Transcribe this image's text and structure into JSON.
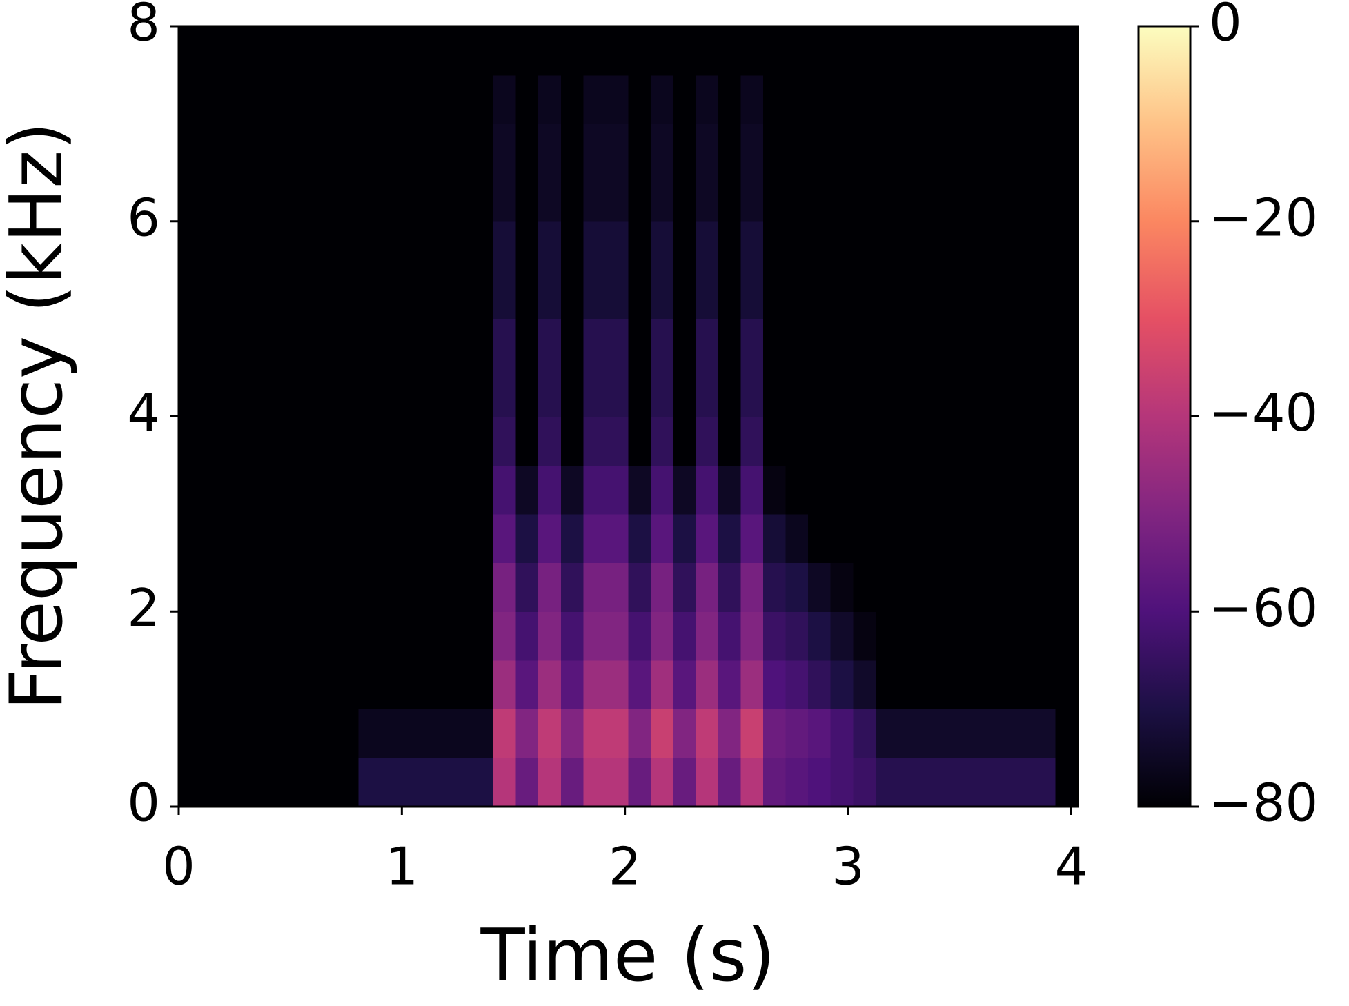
{
  "chart_data": {
    "type": "heatmap",
    "x_label": "Time (s)",
    "y_label": "Frequency (kHz)",
    "xlim": [
      0,
      4.03
    ],
    "ylim": [
      0,
      8
    ],
    "xticks": [
      0,
      1,
      2,
      3,
      4
    ],
    "yticks": [
      0,
      2,
      4,
      6,
      8
    ],
    "colormap": "magma",
    "clim": [
      -80,
      0
    ],
    "cticks": [
      {
        "value": 0,
        "label": "0"
      },
      {
        "value": -20,
        "label": "−20"
      },
      {
        "value": -40,
        "label": "−40"
      },
      {
        "value": -60,
        "label": "−60"
      },
      {
        "value": -80,
        "label": "−80"
      }
    ],
    "z": [
      [
        -80,
        -80,
        -80,
        -80,
        -80,
        -80,
        -80,
        -80,
        -70,
        -70,
        -70,
        -70,
        -70,
        -70,
        -40,
        -55,
        -40,
        -55,
        -40,
        -40,
        -55,
        -40,
        -55,
        -40,
        -55,
        -40,
        -56,
        -58,
        -60,
        -62,
        -64,
        -68,
        -68,
        -68,
        -68,
        -68,
        -68,
        -68,
        -68,
        -80
      ],
      [
        -80,
        -80,
        -80,
        -80,
        -80,
        -80,
        -80,
        -80,
        -76,
        -76,
        -76,
        -76,
        -76,
        -76,
        -38,
        -50,
        -38,
        -50,
        -38,
        -38,
        -50,
        -36,
        -50,
        -38,
        -50,
        -36,
        -54,
        -56,
        -58,
        -62,
        -66,
        -74,
        -74,
        -74,
        -74,
        -74,
        -74,
        -74,
        -74,
        -80
      ],
      [
        -80,
        -80,
        -80,
        -80,
        -80,
        -80,
        -80,
        -80,
        -80,
        -80,
        -80,
        -80,
        -80,
        -80,
        -45,
        -58,
        -45,
        -58,
        -45,
        -45,
        -58,
        -44,
        -58,
        -45,
        -58,
        -45,
        -60,
        -62,
        -66,
        -70,
        -74,
        -80,
        -80,
        -80,
        -80,
        -80,
        -80,
        -80,
        -80,
        -80
      ],
      [
        -80,
        -80,
        -80,
        -80,
        -80,
        -80,
        -80,
        -80,
        -80,
        -80,
        -80,
        -80,
        -80,
        -80,
        -50,
        -62,
        -50,
        -62,
        -50,
        -50,
        -62,
        -50,
        -62,
        -50,
        -62,
        -50,
        -64,
        -66,
        -70,
        -74,
        -78,
        -80,
        -80,
        -80,
        -80,
        -80,
        -80,
        -80,
        -80,
        -80
      ],
      [
        -80,
        -80,
        -80,
        -80,
        -80,
        -80,
        -80,
        -80,
        -80,
        -80,
        -80,
        -80,
        -80,
        -80,
        -52,
        -66,
        -52,
        -66,
        -52,
        -52,
        -66,
        -52,
        -66,
        -52,
        -66,
        -52,
        -68,
        -70,
        -75,
        -78,
        -80,
        -80,
        -80,
        -80,
        -80,
        -80,
        -80,
        -80,
        -80,
        -80
      ],
      [
        -80,
        -80,
        -80,
        -80,
        -80,
        -80,
        -80,
        -80,
        -80,
        -80,
        -80,
        -80,
        -80,
        -80,
        -58,
        -70,
        -58,
        -70,
        -58,
        -58,
        -70,
        -58,
        -70,
        -58,
        -70,
        -58,
        -72,
        -76,
        -80,
        -80,
        -80,
        -80,
        -80,
        -80,
        -80,
        -80,
        -80,
        -80,
        -80,
        -80
      ],
      [
        -80,
        -80,
        -80,
        -80,
        -80,
        -80,
        -80,
        -80,
        -80,
        -80,
        -80,
        -80,
        -80,
        -80,
        -62,
        -75,
        -62,
        -75,
        -62,
        -62,
        -75,
        -62,
        -75,
        -62,
        -75,
        -62,
        -78,
        -80,
        -80,
        -80,
        -80,
        -80,
        -80,
        -80,
        -80,
        -80,
        -80,
        -80,
        -80,
        -80
      ],
      [
        -80,
        -80,
        -80,
        -80,
        -80,
        -80,
        -80,
        -80,
        -80,
        -80,
        -80,
        -80,
        -80,
        -80,
        -66,
        -80,
        -66,
        -80,
        -66,
        -66,
        -80,
        -66,
        -80,
        -66,
        -80,
        -66,
        -80,
        -80,
        -80,
        -80,
        -80,
        -80,
        -80,
        -80,
        -80,
        -80,
        -80,
        -80,
        -80,
        -80
      ],
      [
        -80,
        -80,
        -80,
        -80,
        -80,
        -80,
        -80,
        -80,
        -80,
        -80,
        -80,
        -80,
        -80,
        -80,
        -68,
        -80,
        -68,
        -80,
        -68,
        -68,
        -80,
        -68,
        -80,
        -68,
        -80,
        -68,
        -80,
        -80,
        -80,
        -80,
        -80,
        -80,
        -80,
        -80,
        -80,
        -80,
        -80,
        -80,
        -80,
        -80
      ],
      [
        -80,
        -80,
        -80,
        -80,
        -80,
        -80,
        -80,
        -80,
        -80,
        -80,
        -80,
        -80,
        -80,
        -80,
        -68,
        -80,
        -68,
        -80,
        -68,
        -68,
        -80,
        -68,
        -80,
        -68,
        -80,
        -68,
        -80,
        -80,
        -80,
        -80,
        -80,
        -80,
        -80,
        -80,
        -80,
        -80,
        -80,
        -80,
        -80,
        -80
      ],
      [
        -80,
        -80,
        -80,
        -80,
        -80,
        -80,
        -80,
        -80,
        -80,
        -80,
        -80,
        -80,
        -80,
        -80,
        -72,
        -80,
        -72,
        -80,
        -72,
        -72,
        -80,
        -72,
        -80,
        -72,
        -80,
        -72,
        -80,
        -80,
        -80,
        -80,
        -80,
        -80,
        -80,
        -80,
        -80,
        -80,
        -80,
        -80,
        -80,
        -80
      ],
      [
        -80,
        -80,
        -80,
        -80,
        -80,
        -80,
        -80,
        -80,
        -80,
        -80,
        -80,
        -80,
        -80,
        -80,
        -72,
        -80,
        -72,
        -80,
        -72,
        -72,
        -80,
        -72,
        -80,
        -72,
        -80,
        -72,
        -80,
        -80,
        -80,
        -80,
        -80,
        -80,
        -80,
        -80,
        -80,
        -80,
        -80,
        -80,
        -80,
        -80
      ],
      [
        -80,
        -80,
        -80,
        -80,
        -80,
        -80,
        -80,
        -80,
        -80,
        -80,
        -80,
        -80,
        -80,
        -80,
        -75,
        -80,
        -75,
        -80,
        -75,
        -75,
        -80,
        -75,
        -80,
        -75,
        -80,
        -75,
        -80,
        -80,
        -80,
        -80,
        -80,
        -80,
        -80,
        -80,
        -80,
        -80,
        -80,
        -80,
        -80,
        -80
      ],
      [
        -80,
        -80,
        -80,
        -80,
        -80,
        -80,
        -80,
        -80,
        -80,
        -80,
        -80,
        -80,
        -80,
        -80,
        -75,
        -80,
        -75,
        -80,
        -75,
        -75,
        -80,
        -75,
        -80,
        -75,
        -80,
        -75,
        -80,
        -80,
        -80,
        -80,
        -80,
        -80,
        -80,
        -80,
        -80,
        -80,
        -80,
        -80,
        -80,
        -80
      ],
      [
        -80,
        -80,
        -80,
        -80,
        -80,
        -80,
        -80,
        -80,
        -80,
        -80,
        -80,
        -80,
        -80,
        -80,
        -76,
        -80,
        -76,
        -80,
        -76,
        -76,
        -80,
        -76,
        -80,
        -76,
        -80,
        -76,
        -80,
        -80,
        -80,
        -80,
        -80,
        -80,
        -80,
        -80,
        -80,
        -80,
        -80,
        -80,
        -80,
        -80
      ],
      [
        -80,
        -80,
        -80,
        -80,
        -80,
        -80,
        -80,
        -80,
        -80,
        -80,
        -80,
        -80,
        -80,
        -80,
        -80,
        -80,
        -80,
        -80,
        -80,
        -80,
        -80,
        -80,
        -80,
        -80,
        -80,
        -80,
        -80,
        -80,
        -80,
        -80,
        -80,
        -80,
        -80,
        -80,
        -80,
        -80,
        -80,
        -80,
        -80,
        -80
      ]
    ]
  }
}
